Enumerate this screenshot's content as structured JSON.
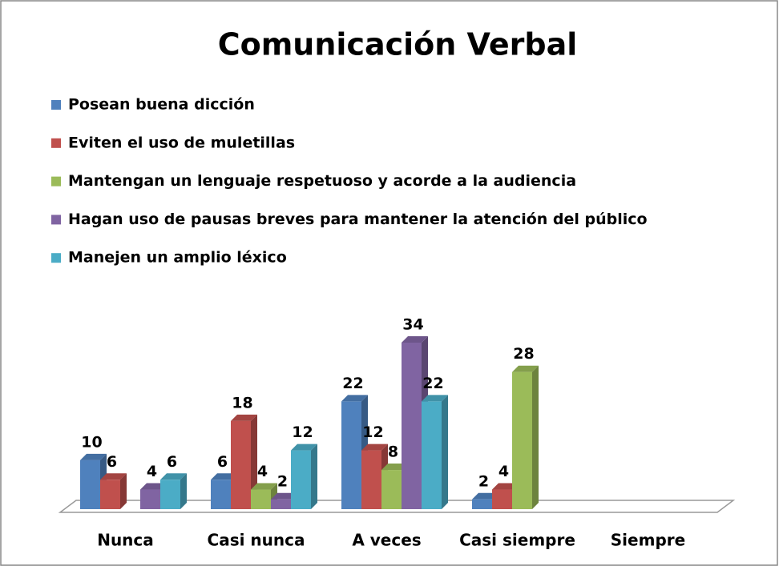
{
  "chart_data": {
    "type": "bar3d",
    "title": "Comunicación Verbal",
    "categories": [
      "Nunca",
      "Casi nunca",
      "A veces",
      "Casi siempre",
      "Siempre"
    ],
    "series": [
      {
        "name": "Posean buena dicción",
        "color": "#4f81bd",
        "values": [
          10,
          6,
          22,
          2,
          null
        ]
      },
      {
        "name": "Eviten el uso de muletillas",
        "color": "#c0504d",
        "values": [
          6,
          18,
          12,
          4,
          null
        ]
      },
      {
        "name": "Mantengan un lenguaje respetuoso y acorde a la audiencia",
        "color": "#9bbb59",
        "values": [
          null,
          4,
          8,
          28,
          null
        ]
      },
      {
        "name": "Hagan uso de pausas breves para mantener la atención del público",
        "color": "#8064a2",
        "values": [
          4,
          2,
          34,
          null,
          null
        ]
      },
      {
        "name": "Manejen un amplio léxico",
        "color": "#4bacc6",
        "values": [
          6,
          12,
          22,
          null,
          null
        ]
      }
    ],
    "legend": "top-left"
  }
}
